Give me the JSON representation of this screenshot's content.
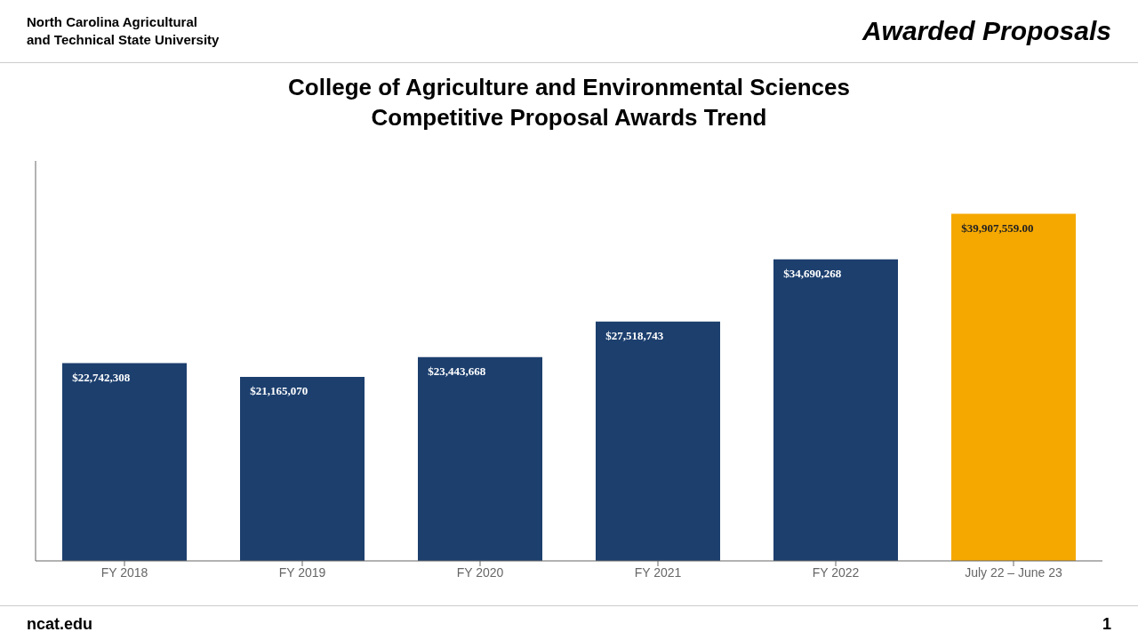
{
  "chart_data": {
    "type": "bar",
    "title": "College of Agriculture and Environmental Sciences",
    "subtitle": "Competitive Proposal Awards Trend",
    "annotations": [
      "Awarded Proposals",
      "North Carolina Agricultural",
      "and Technical State University",
      "ncat.edu",
      "1"
    ],
    "categories": [
      "FY 2018",
      "FY 2019",
      "FY 2020",
      "FY 2021",
      "FY 2022",
      "July 22 – June 23"
    ],
    "values": [
      22742308,
      21165070,
      23443668,
      27518743,
      34690268,
      39907559
    ],
    "value_labels": [
      "$22,742,308",
      "$21,165,070",
      "$23,443,668",
      "$27,518,743",
      "$34,690,268",
      "$39,907,559.00"
    ],
    "colors": [
      "#1c3f6e",
      "#1c3f6e",
      "#1c3f6e",
      "#1c3f6e",
      "#1c3f6e",
      "#f5a800"
    ],
    "ylim": [
      0,
      46000000
    ],
    "grid": false,
    "data_labels": true,
    "tick_labels": "x"
  }
}
